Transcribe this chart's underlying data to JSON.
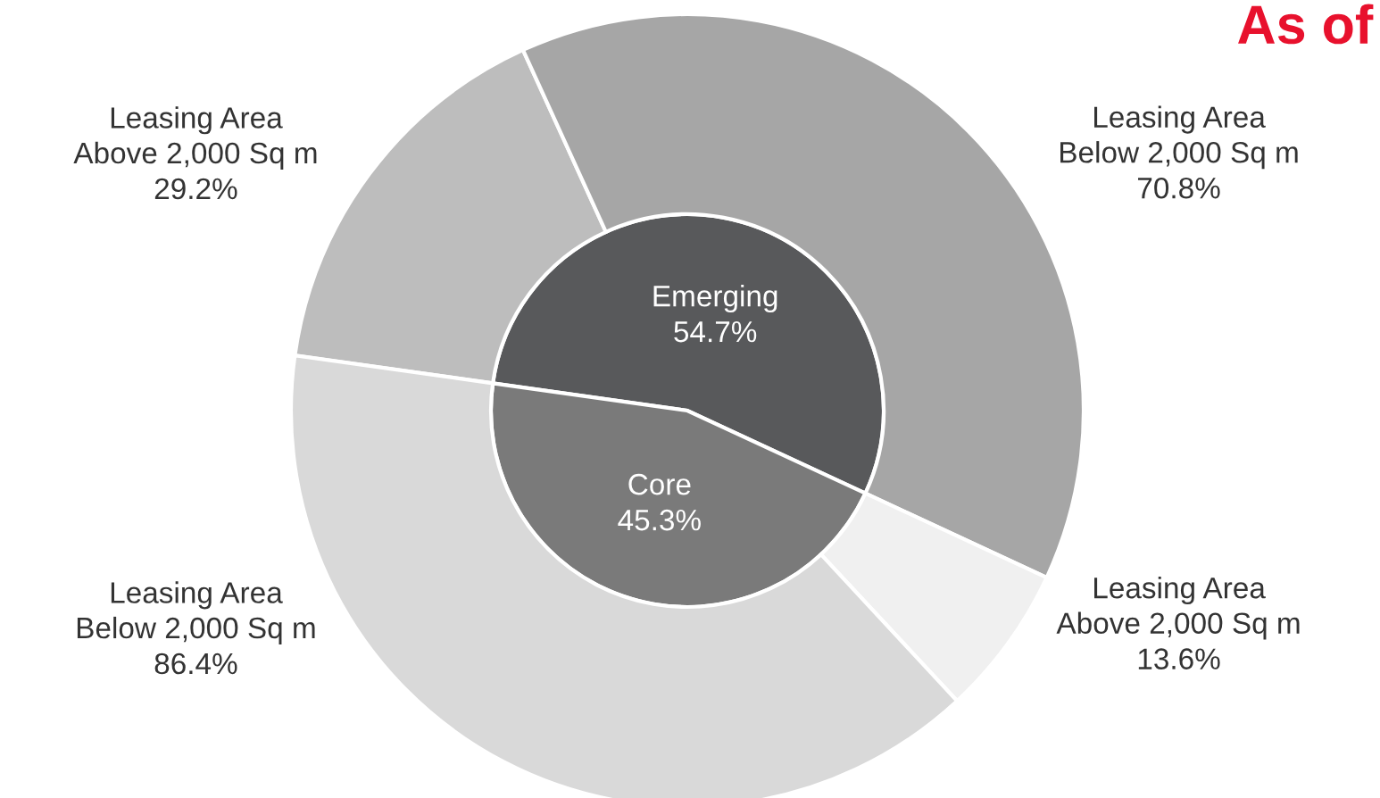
{
  "chart_data": {
    "type": "other",
    "title": "As of",
    "categories": [
      "Emerging",
      "Core",
      "Leasing Area\nAbove 2,000 Sq m",
      "Leasing Area\nBelow 2,000 Sq m",
      "Leasing Area\nAbove 2,000 Sq m",
      "Leasing Area\nBelow 2,000 Sq m"
    ],
    "values": [
      54.7,
      45.3,
      29.2,
      70.8,
      13.6,
      86.4
    ],
    "value_labels": [
      "54.7%",
      "45.3%",
      "29.2%",
      "70.8%",
      "13.6%",
      "86.4%"
    ],
    "colors": [
      "#58595b",
      "#7a7a7a",
      "#bdbdbd",
      "#a6a6a6",
      "#f0f0f0",
      "#d9d9d9"
    ]
  }
}
